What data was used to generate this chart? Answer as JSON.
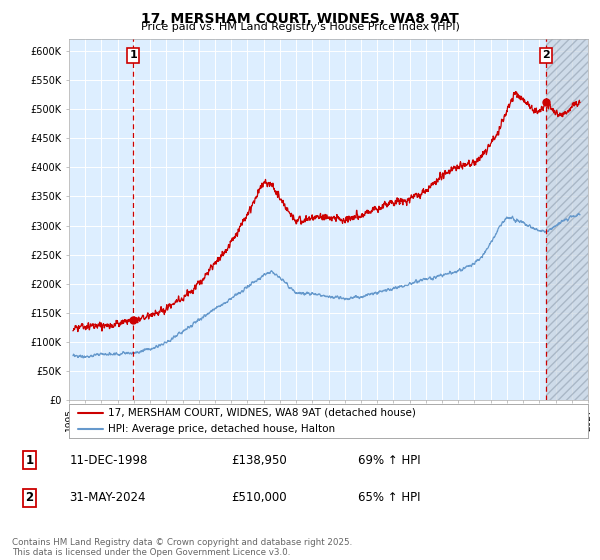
{
  "title": "17, MERSHAM COURT, WIDNES, WA8 9AT",
  "subtitle": "Price paid vs. HM Land Registry's House Price Index (HPI)",
  "ylim": [
    0,
    620000
  ],
  "yticks": [
    0,
    50000,
    100000,
    150000,
    200000,
    250000,
    300000,
    350000,
    400000,
    450000,
    500000,
    550000,
    600000
  ],
  "ytick_labels": [
    "£0",
    "£50K",
    "£100K",
    "£150K",
    "£200K",
    "£250K",
    "£300K",
    "£350K",
    "£400K",
    "£450K",
    "£500K",
    "£550K",
    "£600K"
  ],
  "xlim_start": 1995.25,
  "xlim_end": 2027.0,
  "xticks": [
    1995,
    1996,
    1997,
    1998,
    1999,
    2000,
    2001,
    2002,
    2003,
    2004,
    2005,
    2006,
    2007,
    2008,
    2009,
    2010,
    2011,
    2012,
    2013,
    2014,
    2015,
    2016,
    2017,
    2018,
    2019,
    2020,
    2021,
    2022,
    2023,
    2024,
    2025,
    2026,
    2027
  ],
  "red_color": "#cc0000",
  "blue_color": "#6699cc",
  "plot_bg_color": "#ddeeff",
  "grid_color": "#b0c4de",
  "hatch_color": "#b0b8c8",
  "marker1_date": 1998.96,
  "marker1_price": 138950,
  "marker2_date": 2024.41,
  "marker2_price": 510000,
  "legend_line1": "17, MERSHAM COURT, WIDNES, WA8 9AT (detached house)",
  "legend_line2": "HPI: Average price, detached house, Halton",
  "table_row1": [
    "1",
    "11-DEC-1998",
    "£138,950",
    "69% ↑ HPI"
  ],
  "table_row2": [
    "2",
    "31-MAY-2024",
    "£510,000",
    "65% ↑ HPI"
  ],
  "footer": "Contains HM Land Registry data © Crown copyright and database right 2025.\nThis data is licensed under the Open Government Licence v3.0."
}
